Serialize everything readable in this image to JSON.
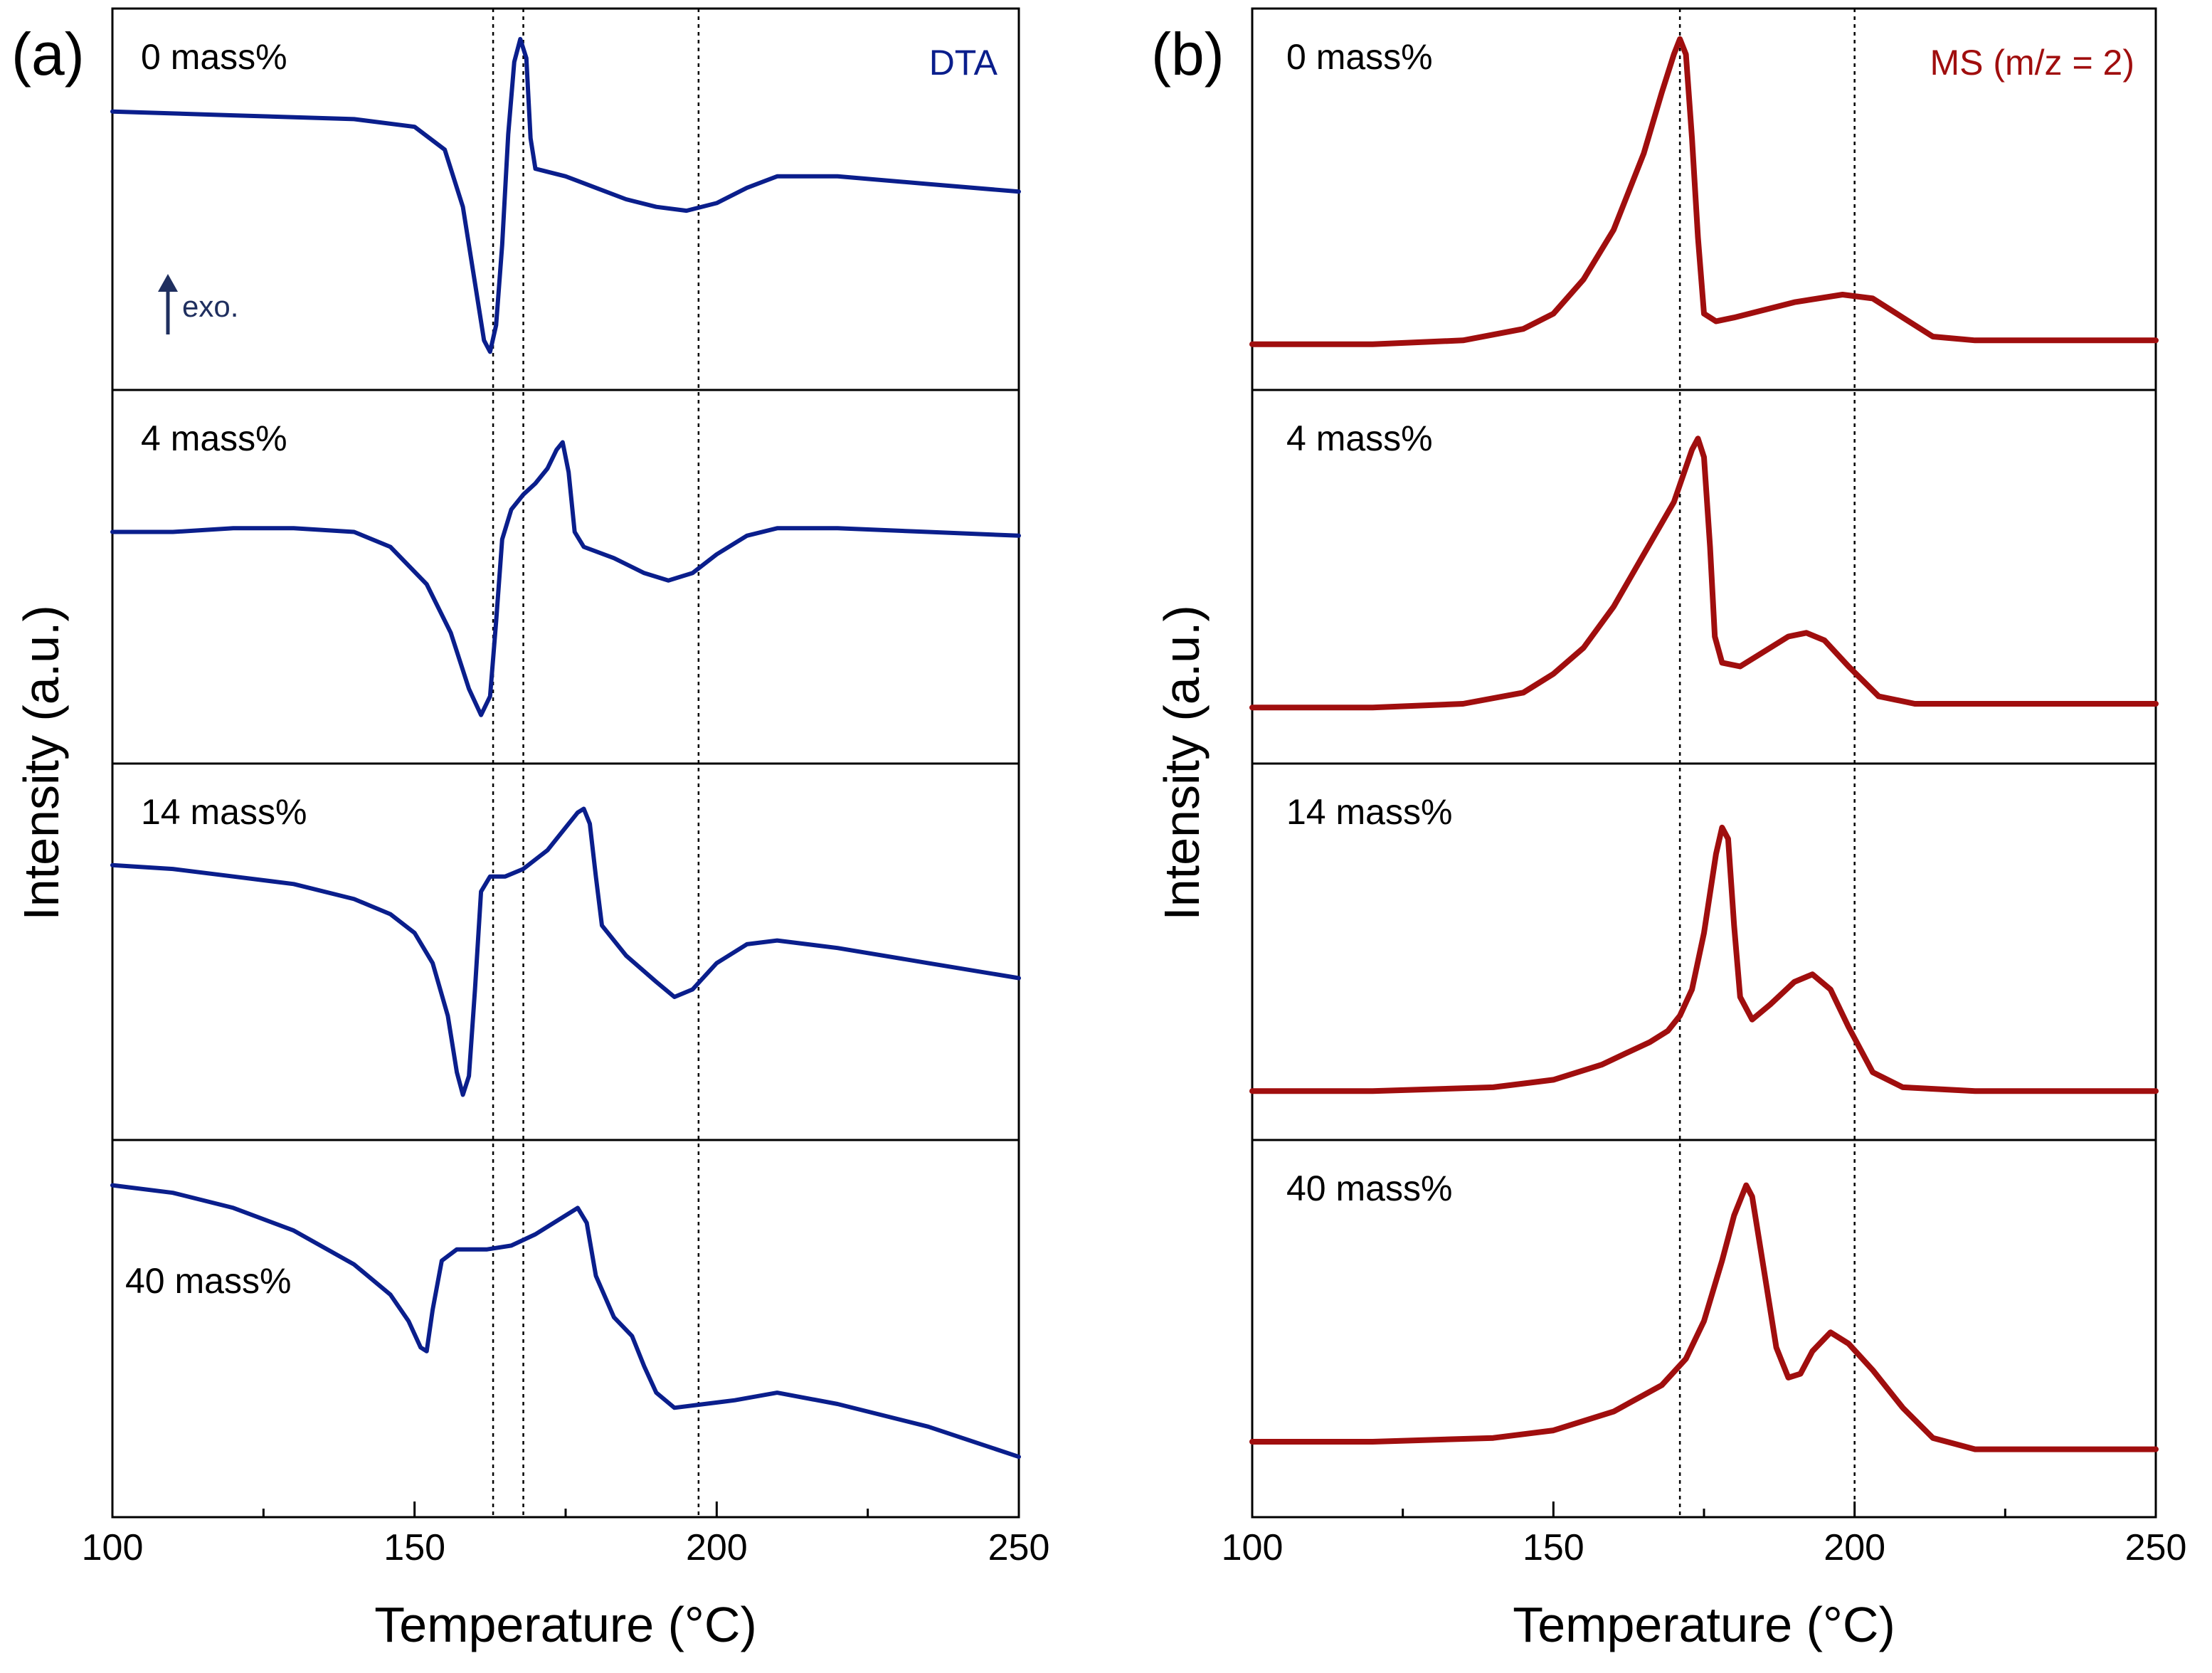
{
  "colors": {
    "dta": "#0a1e8c",
    "ms": "#a00e0e",
    "exo_arrow": "#1f2f5f",
    "axes": "#000000"
  },
  "chart_data": [
    {
      "panel": "(a)",
      "type": "line",
      "signal_label": "DTA",
      "ylabel": "Intensity (a.u.)",
      "xlabel": "Temperature (°C)",
      "xlim": [
        100,
        250
      ],
      "xticks": [
        100,
        150,
        200,
        250
      ],
      "minor_tick_step": 25,
      "reference_lines_x": [
        163,
        168,
        197
      ],
      "annotation": "exo.",
      "annotation_icon": "up-arrow-icon",
      "series": [
        {
          "label": "0 mass%",
          "points": [
            [
              100,
              0.73
            ],
            [
              120,
              0.72
            ],
            [
              140,
              0.71
            ],
            [
              150,
              0.69
            ],
            [
              155,
              0.63
            ],
            [
              158,
              0.48
            ],
            [
              160,
              0.28
            ],
            [
              161.5,
              0.13
            ],
            [
              162.5,
              0.1
            ],
            [
              163.5,
              0.17
            ],
            [
              164.5,
              0.38
            ],
            [
              165.5,
              0.67
            ],
            [
              166.5,
              0.86
            ],
            [
              167.5,
              0.92
            ],
            [
              168.5,
              0.87
            ],
            [
              169.2,
              0.66
            ],
            [
              170,
              0.58
            ],
            [
              175,
              0.56
            ],
            [
              180,
              0.53
            ],
            [
              185,
              0.5
            ],
            [
              190,
              0.48
            ],
            [
              195,
              0.47
            ],
            [
              200,
              0.49
            ],
            [
              205,
              0.53
            ],
            [
              210,
              0.56
            ],
            [
              220,
              0.56
            ],
            [
              235,
              0.54
            ],
            [
              250,
              0.52
            ]
          ]
        },
        {
          "label": "4 mass%",
          "points": [
            [
              100,
              0.62
            ],
            [
              110,
              0.62
            ],
            [
              120,
              0.63
            ],
            [
              130,
              0.63
            ],
            [
              140,
              0.62
            ],
            [
              146,
              0.58
            ],
            [
              152,
              0.48
            ],
            [
              156,
              0.35
            ],
            [
              159,
              0.2
            ],
            [
              161,
              0.13
            ],
            [
              162.5,
              0.18
            ],
            [
              163.5,
              0.38
            ],
            [
              164.5,
              0.6
            ],
            [
              166,
              0.68
            ],
            [
              168,
              0.72
            ],
            [
              170,
              0.75
            ],
            [
              172,
              0.79
            ],
            [
              173.5,
              0.84
            ],
            [
              174.5,
              0.86
            ],
            [
              175.5,
              0.78
            ],
            [
              176.5,
              0.62
            ],
            [
              178,
              0.58
            ],
            [
              183,
              0.55
            ],
            [
              188,
              0.51
            ],
            [
              192,
              0.49
            ],
            [
              196,
              0.51
            ],
            [
              200,
              0.56
            ],
            [
              205,
              0.61
            ],
            [
              210,
              0.63
            ],
            [
              220,
              0.63
            ],
            [
              235,
              0.62
            ],
            [
              250,
              0.61
            ]
          ]
        },
        {
          "label": "14 mass%",
          "points": [
            [
              100,
              0.73
            ],
            [
              110,
              0.72
            ],
            [
              120,
              0.7
            ],
            [
              130,
              0.68
            ],
            [
              140,
              0.64
            ],
            [
              146,
              0.6
            ],
            [
              150,
              0.55
            ],
            [
              153,
              0.47
            ],
            [
              155.5,
              0.33
            ],
            [
              157,
              0.18
            ],
            [
              158,
              0.12
            ],
            [
              159,
              0.17
            ],
            [
              160,
              0.4
            ],
            [
              161,
              0.66
            ],
            [
              162.5,
              0.7
            ],
            [
              165,
              0.7
            ],
            [
              168,
              0.72
            ],
            [
              172,
              0.77
            ],
            [
              175,
              0.83
            ],
            [
              177,
              0.87
            ],
            [
              178,
              0.88
            ],
            [
              179,
              0.84
            ],
            [
              180,
              0.7
            ],
            [
              181,
              0.57
            ],
            [
              185,
              0.49
            ],
            [
              190,
              0.42
            ],
            [
              193,
              0.38
            ],
            [
              196,
              0.4
            ],
            [
              200,
              0.47
            ],
            [
              205,
              0.52
            ],
            [
              210,
              0.53
            ],
            [
              220,
              0.51
            ],
            [
              235,
              0.47
            ],
            [
              250,
              0.43
            ]
          ]
        },
        {
          "label": "40 mass%",
          "points": [
            [
              100,
              0.88
            ],
            [
              110,
              0.86
            ],
            [
              120,
              0.82
            ],
            [
              130,
              0.76
            ],
            [
              140,
              0.67
            ],
            [
              146,
              0.59
            ],
            [
              149,
              0.52
            ],
            [
              151,
              0.45
            ],
            [
              152,
              0.44
            ],
            [
              153,
              0.55
            ],
            [
              154.5,
              0.68
            ],
            [
              157,
              0.71
            ],
            [
              162,
              0.71
            ],
            [
              166,
              0.72
            ],
            [
              170,
              0.75
            ],
            [
              174,
              0.79
            ],
            [
              177,
              0.82
            ],
            [
              178.5,
              0.78
            ],
            [
              180,
              0.64
            ],
            [
              183,
              0.53
            ],
            [
              186,
              0.48
            ],
            [
              188,
              0.4
            ],
            [
              190,
              0.33
            ],
            [
              193,
              0.29
            ],
            [
              198,
              0.3
            ],
            [
              203,
              0.31
            ],
            [
              210,
              0.33
            ],
            [
              220,
              0.3
            ],
            [
              235,
              0.24
            ],
            [
              250,
              0.16
            ]
          ]
        }
      ]
    },
    {
      "panel": "(b)",
      "type": "line",
      "signal_label": "MS (m/z = 2)",
      "ylabel": "Intensity (a.u.)",
      "xlabel": "Temperature (°C)",
      "xlim": [
        100,
        250
      ],
      "xticks": [
        100,
        150,
        200,
        250
      ],
      "minor_tick_step": 25,
      "reference_lines_x": [
        171,
        200
      ],
      "series": [
        {
          "label": "0 mass%",
          "points": [
            [
              100,
              0.12
            ],
            [
              120,
              0.12
            ],
            [
              135,
              0.13
            ],
            [
              145,
              0.16
            ],
            [
              150,
              0.2
            ],
            [
              155,
              0.29
            ],
            [
              160,
              0.42
            ],
            [
              165,
              0.62
            ],
            [
              168,
              0.78
            ],
            [
              170,
              0.88
            ],
            [
              171,
              0.92
            ],
            [
              172,
              0.88
            ],
            [
              173,
              0.66
            ],
            [
              174,
              0.4
            ],
            [
              175,
              0.2
            ],
            [
              177,
              0.18
            ],
            [
              180,
              0.19
            ],
            [
              190,
              0.23
            ],
            [
              198,
              0.25
            ],
            [
              203,
              0.24
            ],
            [
              208,
              0.19
            ],
            [
              213,
              0.14
            ],
            [
              220,
              0.13
            ],
            [
              235,
              0.13
            ],
            [
              250,
              0.13
            ]
          ]
        },
        {
          "label": "4 mass%",
          "points": [
            [
              100,
              0.15
            ],
            [
              120,
              0.15
            ],
            [
              135,
              0.16
            ],
            [
              145,
              0.19
            ],
            [
              150,
              0.24
            ],
            [
              155,
              0.31
            ],
            [
              160,
              0.42
            ],
            [
              165,
              0.56
            ],
            [
              170,
              0.7
            ],
            [
              173,
              0.84
            ],
            [
              174,
              0.87
            ],
            [
              175,
              0.82
            ],
            [
              176,
              0.58
            ],
            [
              176.8,
              0.34
            ],
            [
              178,
              0.27
            ],
            [
              181,
              0.26
            ],
            [
              185,
              0.3
            ],
            [
              189,
              0.34
            ],
            [
              192,
              0.35
            ],
            [
              195,
              0.33
            ],
            [
              199,
              0.26
            ],
            [
              204,
              0.18
            ],
            [
              210,
              0.16
            ],
            [
              230,
              0.16
            ],
            [
              250,
              0.16
            ]
          ]
        },
        {
          "label": "14 mass%",
          "points": [
            [
              100,
              0.13
            ],
            [
              120,
              0.13
            ],
            [
              140,
              0.14
            ],
            [
              150,
              0.16
            ],
            [
              158,
              0.2
            ],
            [
              162,
              0.23
            ],
            [
              166,
              0.26
            ],
            [
              169,
              0.29
            ],
            [
              171,
              0.33
            ],
            [
              173,
              0.4
            ],
            [
              175,
              0.55
            ],
            [
              177,
              0.76
            ],
            [
              178,
              0.83
            ],
            [
              179,
              0.8
            ],
            [
              180,
              0.57
            ],
            [
              181,
              0.38
            ],
            [
              183,
              0.32
            ],
            [
              186,
              0.36
            ],
            [
              190,
              0.42
            ],
            [
              193,
              0.44
            ],
            [
              196,
              0.4
            ],
            [
              199,
              0.3
            ],
            [
              203,
              0.18
            ],
            [
              208,
              0.14
            ],
            [
              220,
              0.13
            ],
            [
              250,
              0.13
            ]
          ]
        },
        {
          "label": "40 mass%",
          "points": [
            [
              100,
              0.2
            ],
            [
              120,
              0.2
            ],
            [
              140,
              0.21
            ],
            [
              150,
              0.23
            ],
            [
              160,
              0.28
            ],
            [
              168,
              0.35
            ],
            [
              172,
              0.42
            ],
            [
              175,
              0.52
            ],
            [
              178,
              0.68
            ],
            [
              180,
              0.8
            ],
            [
              182,
              0.88
            ],
            [
              183,
              0.85
            ],
            [
              185,
              0.65
            ],
            [
              187,
              0.45
            ],
            [
              189,
              0.37
            ],
            [
              191,
              0.38
            ],
            [
              193,
              0.44
            ],
            [
              196,
              0.49
            ],
            [
              199,
              0.46
            ],
            [
              203,
              0.39
            ],
            [
              208,
              0.29
            ],
            [
              213,
              0.21
            ],
            [
              220,
              0.18
            ],
            [
              235,
              0.18
            ],
            [
              250,
              0.18
            ]
          ]
        }
      ]
    }
  ]
}
